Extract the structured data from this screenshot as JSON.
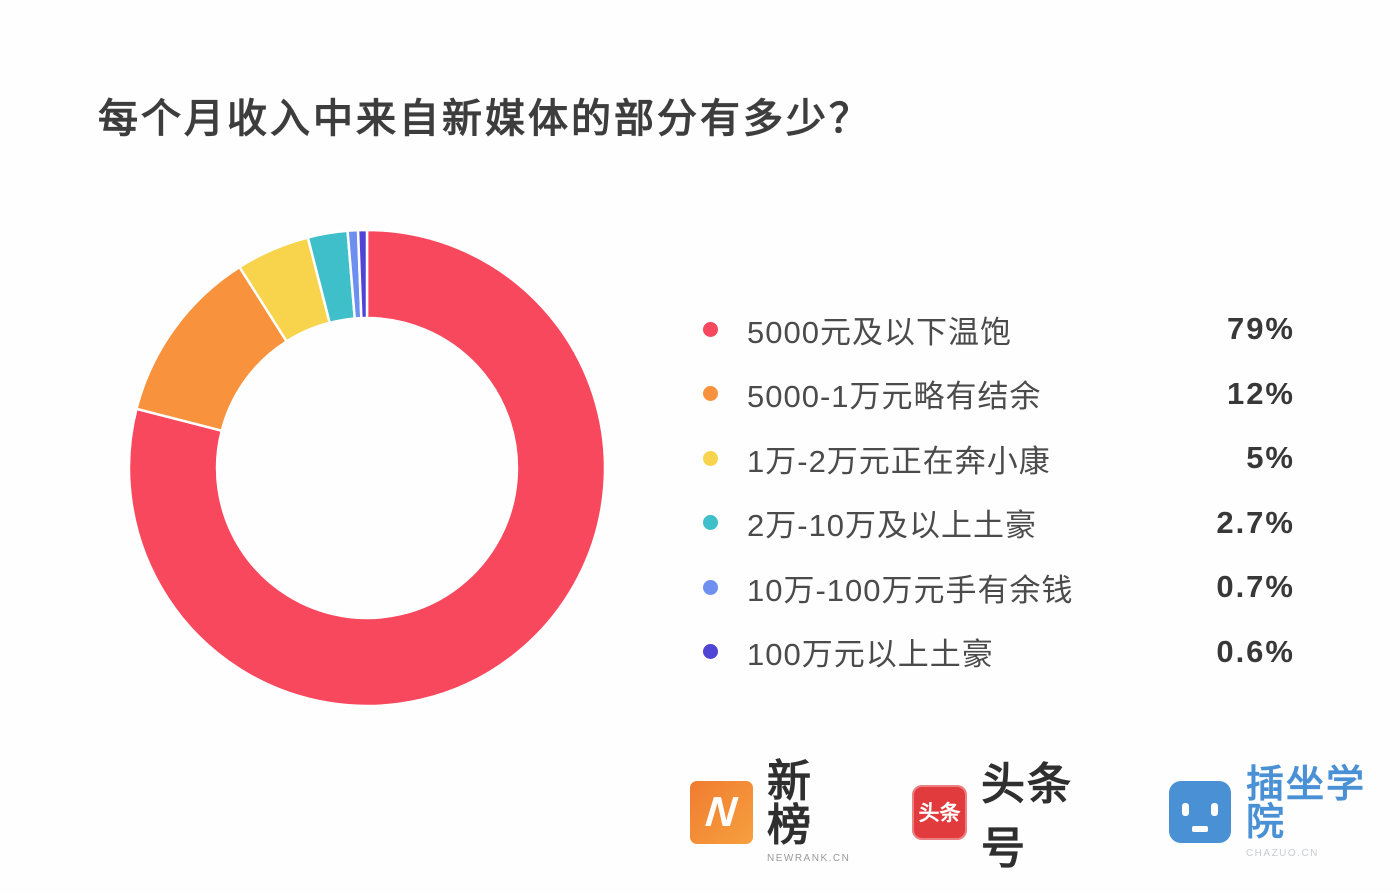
{
  "title": "每个月收入中来自新媒体的部分有多少？",
  "chart_data": {
    "type": "pie",
    "subtype": "donut",
    "title": "每个月收入中来自新媒体的部分有多少？",
    "categories": [
      "5000元及以下温饱",
      "5000-1万元略有结余",
      "1万-2万元正在奔小康",
      "2万-10万及以上土豪",
      "10万-100万元手有余钱",
      "100万元以上土豪"
    ],
    "values": [
      79,
      12,
      5,
      2.7,
      0.7,
      0.6
    ],
    "unit": "%",
    "colors": [
      "#f8485e",
      "#f9923c",
      "#f8d44d",
      "#3ebfc9",
      "#6d8ff0",
      "#5044d5"
    ],
    "start_angle_deg": 0,
    "direction": "clockwise",
    "inner_radius_ratio": 0.63,
    "slice_gap_color": "#ffffff",
    "legend_position": "right"
  },
  "legend": {
    "items": [
      {
        "label": "5000元及以下温饱",
        "value": "79%",
        "color": "#f8485e"
      },
      {
        "label": "5000-1万元略有结余",
        "value": "12%",
        "color": "#f9923c"
      },
      {
        "label": "1万-2万元正在奔小康",
        "value": "5%",
        "color": "#f8d44d"
      },
      {
        "label": "2万-10万及以上土豪",
        "value": "2.7%",
        "color": "#3ebfc9"
      },
      {
        "label": "10万-100万元手有余钱",
        "value": "0.7%",
        "color": "#6d8ff0"
      },
      {
        "label": "100万元以上土豪",
        "value": "0.6%",
        "color": "#5044d5"
      }
    ]
  },
  "footer": {
    "logos": [
      {
        "name": "newrank",
        "icon_letter": "N",
        "text": "新榜",
        "subtext": "NEWRANK.CN"
      },
      {
        "name": "toutiao",
        "icon_text": "头条",
        "text": "头条号"
      },
      {
        "name": "chazuo",
        "text": "插坐学院",
        "subtext": "CHAZUO.CN"
      }
    ]
  }
}
